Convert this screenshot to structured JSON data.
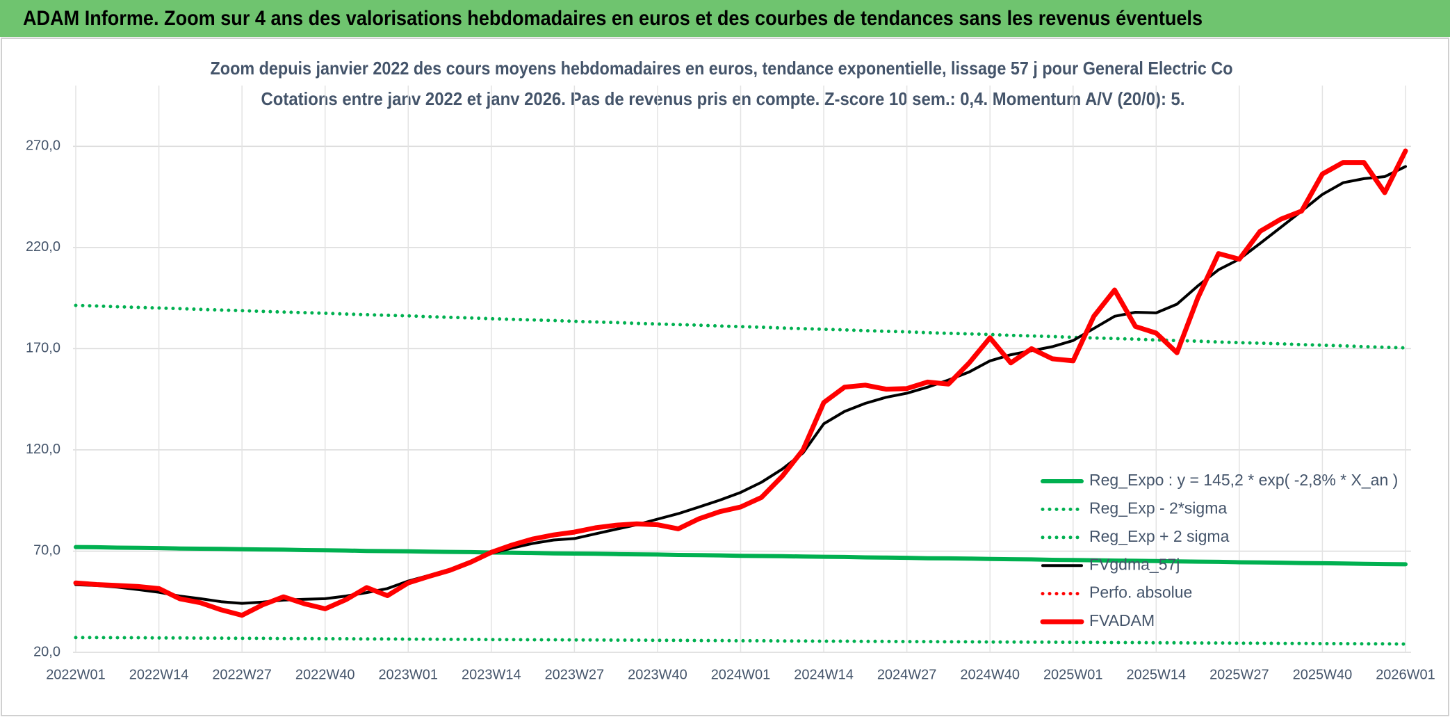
{
  "header": {
    "title": "ADAM Informe. Zoom sur 4 ans des valorisations hebdomadaires en euros et des courbes de tendances sans les revenus éventuels"
  },
  "chart_data": {
    "type": "line",
    "title": "Zoom depuis janvier 2022 des cours moyens hebdomadaires en euros, tendance exponentielle, lissage 57 j pour General Electric Co",
    "subtitle": "Cotations entre janv 2022 et janv 2026. Pas de revenus pris en compte. Z-score 10 sem.: 0,4. Momentum A/V (20/0): 5.",
    "categories": [
      "2022W01",
      null,
      null,
      null,
      "2022W14",
      null,
      null,
      null,
      "2022W27",
      null,
      null,
      null,
      "2022W40",
      null,
      null,
      null,
      "2023W01",
      null,
      null,
      null,
      "2023W14",
      null,
      null,
      null,
      "2023W27",
      null,
      null,
      null,
      "2023W40",
      null,
      null,
      null,
      "2024W01",
      null,
      null,
      null,
      "2024W14",
      null,
      null,
      null,
      "2024W27",
      null,
      null,
      null,
      "2024W40",
      null,
      null,
      null,
      "2025W01",
      null,
      null,
      null,
      "2025W14",
      null,
      null,
      null,
      "2025W27",
      null,
      null,
      null,
      "2025W40",
      null,
      null,
      null,
      "2026W01"
    ],
    "series": [
      {
        "name": "Reg_Expo : y = 145,2 * exp( -2,8% *  X_an )",
        "color": "#00b050",
        "style": "solid",
        "values": [
          72.0,
          71.9,
          71.7,
          71.6,
          71.5,
          71.3,
          71.2,
          71.1,
          70.9,
          70.8,
          70.7,
          70.5,
          70.4,
          70.3,
          70.1,
          70.0,
          69.9,
          69.7,
          69.6,
          69.5,
          69.3,
          69.2,
          69.1,
          68.9,
          68.8,
          68.7,
          68.5,
          68.4,
          68.3,
          68.1,
          68.0,
          67.9,
          67.7,
          67.6,
          67.5,
          67.3,
          67.2,
          67.1,
          66.9,
          66.8,
          66.7,
          66.5,
          66.4,
          66.3,
          66.1,
          66.0,
          65.9,
          65.7,
          65.6,
          65.5,
          65.3,
          65.2,
          65.1,
          64.9,
          64.8,
          64.7,
          64.5,
          64.4,
          64.3,
          64.1,
          64.0,
          63.9,
          63.7,
          63.6,
          63.5
        ]
      },
      {
        "name": "Reg_Exp - 2*sigma",
        "color": "#00b050",
        "style": "dotted",
        "values": [
          27.3,
          27.3,
          27.2,
          27.2,
          27.1,
          27.1,
          27.0,
          27.0,
          26.9,
          26.9,
          26.8,
          26.8,
          26.7,
          26.7,
          26.6,
          26.6,
          26.5,
          26.5,
          26.4,
          26.4,
          26.3,
          26.3,
          26.2,
          26.2,
          26.1,
          26.1,
          26.0,
          26.0,
          25.9,
          25.9,
          25.8,
          25.8,
          25.7,
          25.7,
          25.6,
          25.6,
          25.5,
          25.5,
          25.4,
          25.4,
          25.3,
          25.3,
          25.2,
          25.2,
          25.1,
          25.1,
          25.0,
          25.0,
          24.9,
          24.9,
          24.8,
          24.8,
          24.7,
          24.7,
          24.6,
          24.6,
          24.5,
          24.5,
          24.4,
          24.4,
          24.3,
          24.3,
          24.2,
          24.2,
          24.1
        ]
      },
      {
        "name": "Reg_Exp + 2 sigma",
        "color": "#00b050",
        "style": "dotted",
        "values": [
          191.4,
          191.1,
          190.7,
          190.4,
          190.1,
          189.8,
          189.4,
          189.1,
          188.8,
          188.4,
          188.1,
          187.8,
          187.5,
          187.1,
          186.8,
          186.5,
          186.2,
          185.8,
          185.5,
          185.2,
          184.8,
          184.5,
          184.2,
          183.9,
          183.5,
          183.2,
          182.9,
          182.5,
          182.2,
          181.9,
          181.6,
          181.2,
          180.9,
          180.6,
          180.2,
          179.9,
          179.6,
          179.3,
          178.9,
          178.6,
          178.3,
          177.9,
          177.6,
          177.3,
          177.0,
          176.6,
          176.3,
          176.0,
          175.6,
          175.3,
          175.0,
          174.7,
          174.3,
          174.0,
          173.7,
          173.3,
          173.0,
          172.7,
          172.4,
          172.0,
          171.7,
          171.4,
          171.0,
          170.7,
          170.4
        ]
      },
      {
        "name": "FVgdma_57j",
        "color": "#000000",
        "style": "solid",
        "values": [
          53.4,
          53.0,
          52.2,
          51.0,
          49.7,
          47.8,
          46.5,
          45.0,
          44.2,
          44.8,
          45.8,
          46.2,
          46.5,
          47.8,
          49.5,
          51.5,
          55.2,
          58.0,
          61.0,
          65.0,
          68.9,
          71.5,
          73.8,
          75.5,
          76.2,
          78.5,
          80.8,
          83.0,
          85.8,
          88.5,
          91.8,
          95.2,
          99.0,
          104.0,
          110.5,
          118.5,
          132.9,
          139.0,
          143.0,
          146.0,
          148.0,
          151.0,
          154.5,
          158.5,
          164.0,
          167.0,
          169.0,
          171.0,
          174.0,
          180.0,
          186.0,
          188.0,
          187.7,
          192.0,
          201.0,
          209.0,
          214.2,
          222.0,
          230.0,
          238.0,
          246.2,
          252.0,
          254.0,
          255.0,
          260.0
        ]
      },
      {
        "name": "Perfo. absolue",
        "color": "#ff0000",
        "style": "dotted",
        "values": [
          null,
          null,
          null,
          null,
          null,
          null,
          null,
          null,
          null,
          null,
          null,
          null,
          null,
          null,
          null,
          null,
          null,
          null,
          null,
          null,
          null,
          null,
          null,
          null,
          null,
          null,
          null,
          null,
          null,
          null,
          null,
          null,
          null,
          null,
          null,
          null,
          null,
          null,
          null,
          null,
          null,
          null,
          null,
          null,
          null,
          null,
          null,
          null,
          null,
          null,
          null,
          null,
          null,
          null,
          null,
          null,
          null,
          null,
          null,
          null,
          null,
          null,
          null,
          null,
          null
        ]
      },
      {
        "name": "FVADAM",
        "color": "#ff0000",
        "style": "solid",
        "values": [
          54.3,
          53.5,
          53.0,
          52.5,
          51.5,
          46.5,
          44.5,
          41.0,
          38.3,
          43.5,
          47.4,
          44.0,
          41.5,
          46.0,
          52.0,
          48.0,
          54.3,
          57.5,
          60.5,
          64.5,
          69.4,
          73.0,
          76.0,
          78.0,
          79.4,
          81.5,
          82.8,
          83.5,
          83.0,
          81.0,
          86.0,
          89.5,
          91.8,
          96.5,
          107.0,
          120.0,
          143.4,
          151.0,
          152.0,
          150.0,
          150.3,
          153.5,
          152.5,
          163.0,
          175.4,
          163.0,
          170.0,
          165.0,
          164.0,
          186.0,
          199.0,
          181.0,
          177.7,
          168.0,
          195.0,
          217.0,
          214.2,
          228.0,
          234.0,
          238.0,
          256.3,
          262.0,
          262.0,
          247.1,
          267.7
        ]
      }
    ],
    "ylim": [
      20,
      300
    ],
    "yticks": [
      {
        "value": 20,
        "label": "20,0"
      },
      {
        "value": 70,
        "label": "70,0"
      },
      {
        "value": 120,
        "label": "120,0"
      },
      {
        "value": 170,
        "label": "170,0"
      },
      {
        "value": 220,
        "label": "220,0"
      },
      {
        "value": 270,
        "label": "270,0"
      }
    ],
    "grid": true,
    "legend": "lower right"
  }
}
